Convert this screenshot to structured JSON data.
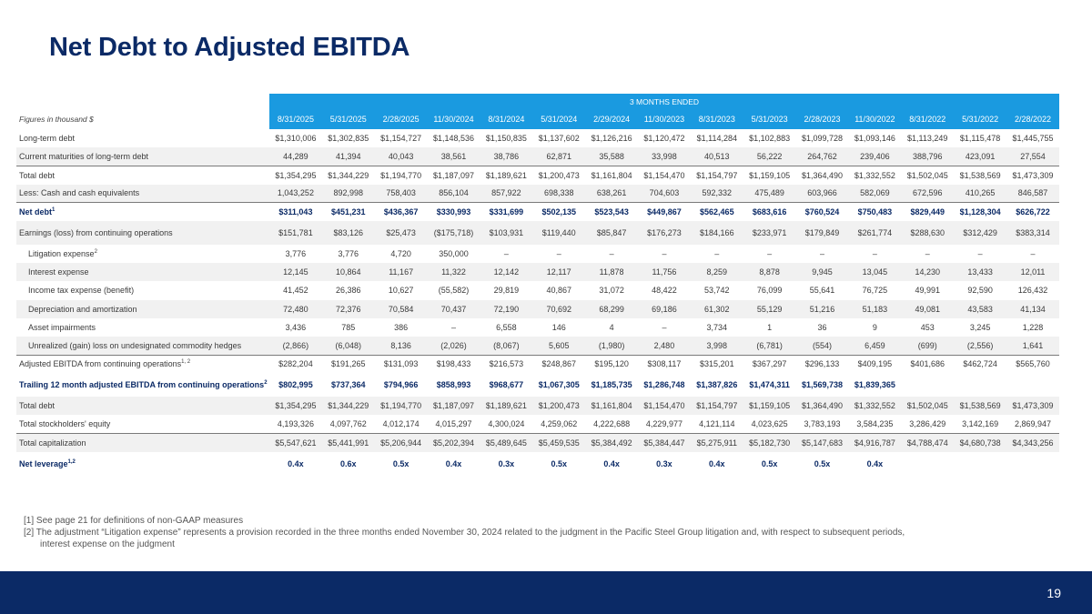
{
  "title": "Net Debt to Adjusted EBITDA",
  "table": {
    "band_label": "3 MONTHS ENDED",
    "units_label": "Figures in thousand $",
    "columns": [
      "8/31/2025",
      "5/31/2025",
      "2/28/2025",
      "11/30/2024",
      "8/31/2024",
      "5/31/2024",
      "2/29/2024",
      "11/30/2023",
      "8/31/2023",
      "5/31/2023",
      "2/28/2023",
      "11/30/2022",
      "8/31/2022",
      "5/31/2022",
      "2/28/2022"
    ],
    "rows": [
      {
        "label": "Long-term debt",
        "sup": "",
        "style": "",
        "values": [
          "$1,310,006",
          "$1,302,835",
          "$1,154,727",
          "$1,148,536",
          "$1,150,835",
          "$1,137,602",
          "$1,126,216",
          "$1,120,472",
          "$1,114,284",
          "$1,102,883",
          "$1,099,728",
          "$1,093,146",
          "$1,113,249",
          "$1,115,478",
          "$1,445,755"
        ]
      },
      {
        "label": "Current maturities of long-term debt",
        "sup": "",
        "style": "shade border-bot",
        "values": [
          "44,289",
          "41,394",
          "40,043",
          "38,561",
          "38,786",
          "62,871",
          "35,588",
          "33,998",
          "40,513",
          "56,222",
          "264,762",
          "239,406",
          "388,796",
          "423,091",
          "27,554"
        ]
      },
      {
        "label": "Total debt",
        "sup": "",
        "style": "",
        "values": [
          "$1,354,295",
          "$1,344,229",
          "$1,194,770",
          "$1,187,097",
          "$1,189,621",
          "$1,200,473",
          "$1,161,804",
          "$1,154,470",
          "$1,154,797",
          "$1,159,105",
          "$1,364,490",
          "$1,332,552",
          "$1,502,045",
          "$1,538,569",
          "$1,473,309"
        ]
      },
      {
        "label": "Less: Cash and cash equivalents",
        "sup": "",
        "style": "shade border-bot",
        "values": [
          "1,043,252",
          "892,998",
          "758,403",
          "856,104",
          "857,922",
          "698,338",
          "638,261",
          "704,603",
          "592,332",
          "475,489",
          "603,966",
          "582,069",
          "672,596",
          "410,265",
          "846,587"
        ]
      },
      {
        "label": "Net debt",
        "sup": "1",
        "style": "blue-row",
        "values": [
          "$311,043",
          "$451,231",
          "$436,367",
          "$330,993",
          "$331,699",
          "$502,135",
          "$523,543",
          "$449,867",
          "$562,465",
          "$683,616",
          "$760,524",
          "$750,483",
          "$829,449",
          "$1,128,304",
          "$626,722"
        ]
      },
      {
        "label": "Earnings (loss) from continuing operations",
        "sup": "",
        "style": "shade tall",
        "values": [
          "$151,781",
          "$83,126",
          "$25,473",
          "($175,718)",
          "$103,931",
          "$119,440",
          "$85,847",
          "$176,273",
          "$184,166",
          "$233,971",
          "$179,849",
          "$261,774",
          "$288,630",
          "$312,429",
          "$383,314"
        ]
      },
      {
        "label": "Litigation expense",
        "sup": "2",
        "style": "indent",
        "values": [
          "3,776",
          "3,776",
          "4,720",
          "350,000",
          "–",
          "–",
          "–",
          "–",
          "–",
          "–",
          "–",
          "–",
          "–",
          "–",
          "–"
        ]
      },
      {
        "label": "Interest expense",
        "sup": "",
        "style": "indent shade",
        "values": [
          "12,145",
          "10,864",
          "11,167",
          "11,322",
          "12,142",
          "12,117",
          "11,878",
          "11,756",
          "8,259",
          "8,878",
          "9,945",
          "13,045",
          "14,230",
          "13,433",
          "12,011"
        ]
      },
      {
        "label": "Income tax expense (benefit)",
        "sup": "",
        "style": "indent",
        "values": [
          "41,452",
          "26,386",
          "10,627",
          "(55,582)",
          "29,819",
          "40,867",
          "31,072",
          "48,422",
          "53,742",
          "76,099",
          "55,641",
          "76,725",
          "49,991",
          "92,590",
          "126,432"
        ]
      },
      {
        "label": "Depreciation and amortization",
        "sup": "",
        "style": "indent shade",
        "values": [
          "72,480",
          "72,376",
          "70,584",
          "70,437",
          "72,190",
          "70,692",
          "68,299",
          "69,186",
          "61,302",
          "55,129",
          "51,216",
          "51,183",
          "49,081",
          "43,583",
          "41,134"
        ]
      },
      {
        "label": "Asset impairments",
        "sup": "",
        "style": "indent",
        "values": [
          "3,436",
          "785",
          "386",
          "–",
          "6,558",
          "146",
          "4",
          "–",
          "3,734",
          "1",
          "36",
          "9",
          "453",
          "3,245",
          "1,228"
        ]
      },
      {
        "label": "Unrealized (gain) loss on undesignated commodity hedges",
        "sup": "",
        "style": "indent shade border-bot",
        "values": [
          "(2,866)",
          "(6,048)",
          "8,136",
          "(2,026)",
          "(8,067)",
          "5,605",
          "(1,980)",
          "2,480",
          "3,998",
          "(6,781)",
          "(554)",
          "6,459",
          "(699)",
          "(2,556)",
          "1,641"
        ]
      },
      {
        "label": "Adjusted EBITDA from continuing operations",
        "sup": "1, 2",
        "style": "",
        "values": [
          "$282,204",
          "$191,265",
          "$131,093",
          "$198,433",
          "$216,573",
          "$248,867",
          "$195,120",
          "$308,117",
          "$315,201",
          "$367,297",
          "$296,133",
          "$409,195",
          "$401,686",
          "$462,724",
          "$565,760"
        ]
      },
      {
        "label": "Trailing 12 month adjusted EBITDA from continuing operations",
        "sup": "2",
        "style": "blue-row tall",
        "values": [
          "$802,995",
          "$737,364",
          "$794,966",
          "$858,993",
          "$968,677",
          "$1,067,305",
          "$1,185,735",
          "$1,286,748",
          "$1,387,826",
          "$1,474,311",
          "$1,569,738",
          "$1,839,365",
          "",
          "",
          ""
        ]
      },
      {
        "label": "Total debt",
        "sup": "",
        "style": "shade",
        "values": [
          "$1,354,295",
          "$1,344,229",
          "$1,194,770",
          "$1,187,097",
          "$1,189,621",
          "$1,200,473",
          "$1,161,804",
          "$1,154,470",
          "$1,154,797",
          "$1,159,105",
          "$1,364,490",
          "$1,332,552",
          "$1,502,045",
          "$1,538,569",
          "$1,473,309"
        ]
      },
      {
        "label": "Total stockholders' equity",
        "sup": "",
        "style": "border-bot",
        "values": [
          "4,193,326",
          "4,097,762",
          "4,012,174",
          "4,015,297",
          "4,300,024",
          "4,259,062",
          "4,222,688",
          "4,229,977",
          "4,121,114",
          "4,023,625",
          "3,783,193",
          "3,584,235",
          "3,286,429",
          "3,142,169",
          "2,869,947"
        ]
      },
      {
        "label": "Total capitalization",
        "sup": "",
        "style": "shade",
        "values": [
          "$5,547,621",
          "$5,441,991",
          "$5,206,944",
          "$5,202,394",
          "$5,489,645",
          "$5,459,535",
          "$5,384,492",
          "$5,384,447",
          "$5,275,911",
          "$5,182,730",
          "$5,147,683",
          "$4,916,787",
          "$4,788,474",
          "$4,680,738",
          "$4,343,256"
        ]
      },
      {
        "label": "Net leverage",
        "sup": "1,2",
        "style": "blue-row tall",
        "values": [
          "0.4x",
          "0.6x",
          "0.5x",
          "0.4x",
          "0.3x",
          "0.5x",
          "0.4x",
          "0.3x",
          "0.4x",
          "0.5x",
          "0.5x",
          "0.4x",
          "",
          "",
          ""
        ]
      }
    ]
  },
  "footnotes": [
    "[1] See page 21 for definitions of non-GAAP measures",
    "[2] The adjustment “Litigation expense” represents a provision recorded in the three months ended November 30, 2024 related to the judgment in the Pacific Steel Group litigation and, with respect to subsequent periods,",
    "interest expense on the judgment"
  ],
  "page_number": "19",
  "colors": {
    "title": "#0b2a66",
    "header_band": "#1a9ae0",
    "footer": "#0b2a66"
  }
}
